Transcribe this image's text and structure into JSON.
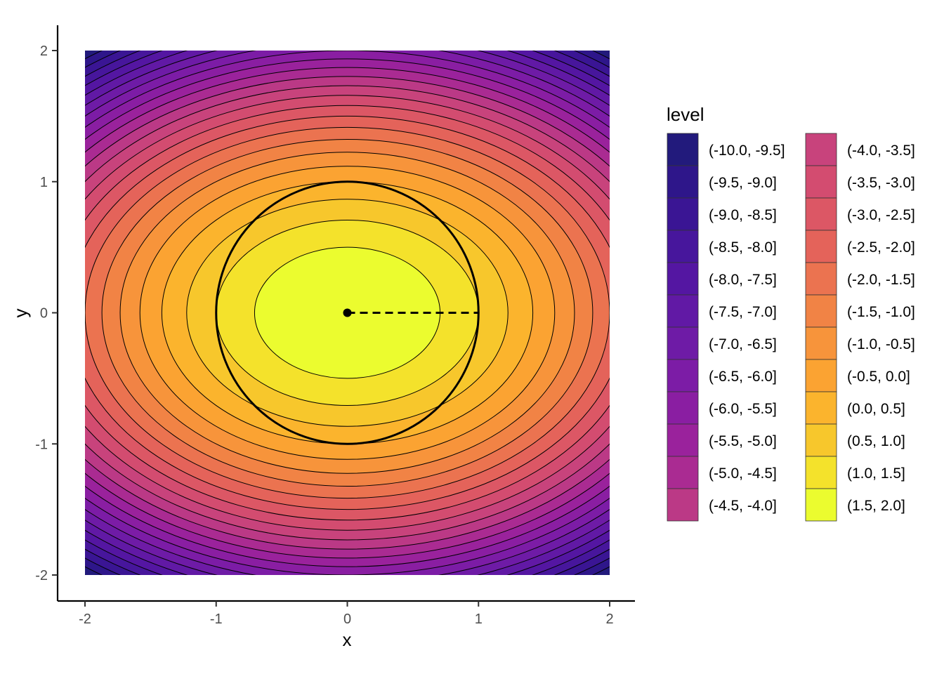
{
  "chart_data": {
    "type": "contour",
    "function": "z = 2 - x^2 - 2*y^2",
    "xlabel": "x",
    "ylabel": "y",
    "xlim": [
      -2,
      2
    ],
    "ylim": [
      -2,
      2
    ],
    "x_ticks": [
      -2,
      -1,
      0,
      1,
      2
    ],
    "y_ticks": [
      -2,
      -1,
      0,
      1,
      2
    ],
    "x_tick_labels": [
      "-2",
      "-1",
      "0",
      "1",
      "2"
    ],
    "y_tick_labels": [
      "-2",
      "-1",
      "0",
      "1",
      "2"
    ],
    "grid": false,
    "contour_step": 0.5,
    "legend": {
      "title": "level",
      "placement": "right",
      "columns": 2,
      "entries": [
        {
          "label": "(-10.0, -9.5]",
          "color": "#221a7c"
        },
        {
          "label": "(-9.5, -9.0]",
          "color": "#2e168a"
        },
        {
          "label": "(-9.0, -8.5]",
          "color": "#3a1594"
        },
        {
          "label": "(-8.5, -8.0]",
          "color": "#47169c"
        },
        {
          "label": "(-8.0, -7.5]",
          "color": "#5416a2"
        },
        {
          "label": "(-7.5, -7.0]",
          "color": "#6119a5"
        },
        {
          "label": "(-7.0, -6.5]",
          "color": "#6e1ba6"
        },
        {
          "label": "(-6.5, -6.0]",
          "color": "#7c1ca6"
        },
        {
          "label": "(-6.0, -5.5]",
          "color": "#8a1ea2"
        },
        {
          "label": "(-5.5, -5.0]",
          "color": "#9a229c"
        },
        {
          "label": "(-5.0, -4.5]",
          "color": "#aa2b92"
        },
        {
          "label": "(-4.5, -4.0]",
          "color": "#bb3986"
        },
        {
          "label": "(-4.0, -3.5]",
          "color": "#c8437c"
        },
        {
          "label": "(-3.5, -3.0]",
          "color": "#d34c70"
        },
        {
          "label": "(-3.0, -2.5]",
          "color": "#dc5765"
        },
        {
          "label": "(-2.5, -2.0]",
          "color": "#e4635a"
        },
        {
          "label": "(-2.0, -1.5]",
          "color": "#eb7350"
        },
        {
          "label": "(-1.5, -1.0]",
          "color": "#f18345"
        },
        {
          "label": "(-1.0, -0.5]",
          "color": "#f7943b"
        },
        {
          "label": "(-0.5, 0.0]",
          "color": "#fba332"
        },
        {
          "label": "(0.0, 0.5]",
          "color": "#fbb42d"
        },
        {
          "label": "(0.5, 1.0]",
          "color": "#f7c72c"
        },
        {
          "label": "(1.0, 1.5]",
          "color": "#f4e22b"
        },
        {
          "label": "(1.5, 2.0]",
          "color": "#ebfc2f"
        }
      ]
    },
    "annotations": {
      "circle": {
        "center": [
          0,
          0
        ],
        "radius": 1
      },
      "point": [
        0,
        0
      ],
      "dashed_segment": {
        "from": [
          0,
          0
        ],
        "to": [
          1,
          0
        ]
      }
    }
  }
}
